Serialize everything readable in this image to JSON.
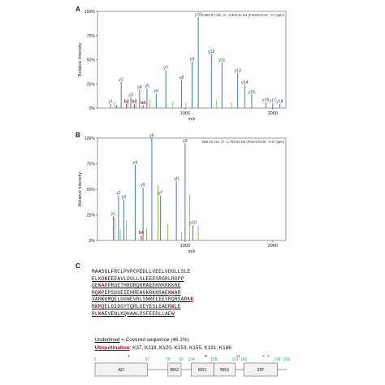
{
  "panels": {
    "a": "A",
    "b": "B",
    "c": "C"
  },
  "chart_data": [
    {
      "type": "bar",
      "ylabel": "Relative Intensity",
      "xlabel": "m/z",
      "ylim": [
        0,
        100
      ],
      "xlim": [
        0,
        2150
      ],
      "yticks": [
        "0%",
        "25%",
        "50%",
        "75%",
        "100%"
      ],
      "xticks": [
        "1000",
        "2000"
      ],
      "header": "2,803.67 m/z, 2+, 2,804.12 Da  (Parent Error: -0.7 ppm)",
      "series": [
        {
          "color": "#2b6cb0",
          "points": [
            {
              "mz": 150,
              "i": 4,
              "label": "y1"
            },
            {
              "mz": 270,
              "i": 27,
              "label": "y2"
            },
            {
              "mz": 380,
              "i": 11,
              "label": "y3"
            },
            {
              "mz": 480,
              "i": 19,
              "label": "y4"
            },
            {
              "mz": 565,
              "i": 20,
              "label": "y5"
            },
            {
              "mz": 670,
              "i": 15,
              "label": "y6"
            },
            {
              "mz": 780,
              "i": 39,
              "label": "y7"
            },
            {
              "mz": 960,
              "i": 29,
              "label": "y8"
            },
            {
              "mz": 1080,
              "i": 48,
              "label": "y9"
            },
            {
              "mz": 1150,
              "i": 94,
              "label": "y10"
            },
            {
              "mz": 1420,
              "i": 47,
              "label": "y11"
            },
            {
              "mz": 1300,
              "i": 56,
              "label": "y12"
            },
            {
              "mz": 1600,
              "i": 36,
              "label": "y13"
            },
            {
              "mz": 1680,
              "i": 24,
              "label": "y14"
            },
            {
              "mz": 1760,
              "i": 14,
              "label": "y15"
            },
            {
              "mz": 1920,
              "i": 6,
              "label": "y16"
            },
            {
              "mz": 2000,
              "i": 5,
              "label": "y17"
            },
            {
              "mz": 2080,
              "i": 4,
              "label": "y18"
            }
          ]
        },
        {
          "color": "#d0021b",
          "points": [
            {
              "mz": 220,
              "i": 3
            },
            {
              "mz": 330,
              "i": 4,
              "label": "b2"
            },
            {
              "mz": 420,
              "i": 4,
              "label": "b3"
            },
            {
              "mz": 520,
              "i": 3,
              "label": "b4"
            }
          ]
        },
        {
          "color": "#7ac143",
          "points": [
            {
              "mz": 200,
              "i": 6
            },
            {
              "mz": 350,
              "i": 8
            },
            {
              "mz": 440,
              "i": 5
            },
            {
              "mz": 600,
              "i": 9
            },
            {
              "mz": 860,
              "i": 7
            },
            {
              "mz": 1010,
              "i": 5
            },
            {
              "mz": 1360,
              "i": 8
            },
            {
              "mz": 1530,
              "i": 6
            }
          ]
        }
      ]
    },
    {
      "type": "bar",
      "ylabel": "Relative Intensity",
      "xlabel": "m/z",
      "ylim": [
        0,
        100
      ],
      "xlim": [
        0,
        2150
      ],
      "yticks": [
        "0%",
        "25%",
        "50%",
        "75%",
        "100%"
      ],
      "xticks": [
        "1000",
        "2000"
      ],
      "header": "855.42 m/z, 2+, 1,709.83 Da  (Parent Error: -0.57 ppm)",
      "series": [
        {
          "color": "#2b6cb0",
          "points": [
            {
              "mz": 180,
              "i": 24,
              "label": "y1"
            },
            {
              "mz": 240,
              "i": 44,
              "label": "y2"
            },
            {
              "mz": 300,
              "i": 40,
              "label": "y3"
            },
            {
              "mz": 430,
              "i": 74,
              "label": "y4"
            },
            {
              "mz": 520,
              "i": 52,
              "label": "y5"
            },
            {
              "mz": 620,
              "i": 100,
              "label": "y6"
            },
            {
              "mz": 720,
              "i": 44,
              "label": "y7"
            },
            {
              "mz": 900,
              "i": 58,
              "label": "y8"
            },
            {
              "mz": 1000,
              "i": 95,
              "label": "y9"
            },
            {
              "mz": 1090,
              "i": 15,
              "label": "y10"
            }
          ]
        },
        {
          "color": "#d0021b",
          "points": [
            {
              "mz": 500,
              "i": 5,
              "label": "b4"
            }
          ]
        },
        {
          "color": "#7ac143",
          "points": [
            {
              "mz": 200,
              "i": 22
            },
            {
              "mz": 260,
              "i": 10
            },
            {
              "mz": 330,
              "i": 20
            },
            {
              "mz": 560,
              "i": 12
            },
            {
              "mz": 690,
              "i": 54
            },
            {
              "mz": 800,
              "i": 16
            },
            {
              "mz": 960,
              "i": 8
            },
            {
              "mz": 1050,
              "i": 45
            },
            {
              "mz": 1150,
              "i": 14
            }
          ]
        }
      ]
    },
    {
      "type": "domain-map",
      "ticks": [
        "1",
        "57",
        "79",
        "93",
        "104",
        "128",
        "151",
        "160",
        "196",
        "206"
      ],
      "domains": [
        "AD",
        "BR2",
        "BR1",
        "BR3",
        "ZIP"
      ]
    }
  ],
  "sequence": {
    "lines": [
      [
        {
          "t": "MAASGLFRCLPVPCPEDLLVEELVDGLLSLE"
        }
      ],
      [
        {
          "t": "ELKD",
          "u": true
        },
        {
          "t": "K",
          "u": true,
          "k": true
        },
        {
          "t": "EEEAVLDGLLSLEEESRGRLRGPP",
          "u": true
        }
      ],
      [
        {
          "t": "GE",
          "u": true
        },
        {
          "t": "K",
          "u": true,
          "k": true
        },
        {
          "t": "APPRGETHRDRQRRAEEKRKRKKRE",
          "u": true
        }
      ],
      [
        {
          "t": "RQ",
          "u": true
        },
        {
          "t": "K",
          "u": true,
          "k": true
        },
        {
          "t": "PEPSGGEIEHREAGKRKKRAE",
          "u": true
        },
        {
          "t": "K",
          "u": true,
          "k": true
        },
        {
          "t": "K",
          "u": true,
          "k": true
        },
        {
          "t": "AR",
          "u": true
        }
      ],
      [
        {
          "t": "VAR",
          "u": true
        },
        {
          "t": "K",
          "u": true,
          "k": true
        },
        {
          "t": "KMQELGGNEVRLSNRELEEVRQRSARK",
          "u": true
        },
        {
          "t": "K",
          "u": true,
          "k": true
        }
      ],
      [
        {
          "t": "R",
          "u": true
        },
        {
          "t": "K",
          "u": true,
          "k": true
        },
        {
          "t": "MQELGIDGYTQRLGEYESLEAER",
          "u": true
        },
        {
          "t": "K",
          "u": true,
          "k": true
        },
        {
          "t": "LE",
          "u": true
        }
      ],
      [
        {
          "t": "RL",
          "u": true
        },
        {
          "t": "K",
          "u": true,
          "k": true
        },
        {
          "t": "AEVENLKQHAALPSFEEDLLAEW",
          "u": true
        }
      ]
    ],
    "underlined_label": "Underlined",
    "covered_text": " = Covered sequence (46.1%)",
    "ubiq_label": "Ubiquitination",
    "ubiq_text": ": K37, K119, K120, K153, K155, K181, K186"
  }
}
